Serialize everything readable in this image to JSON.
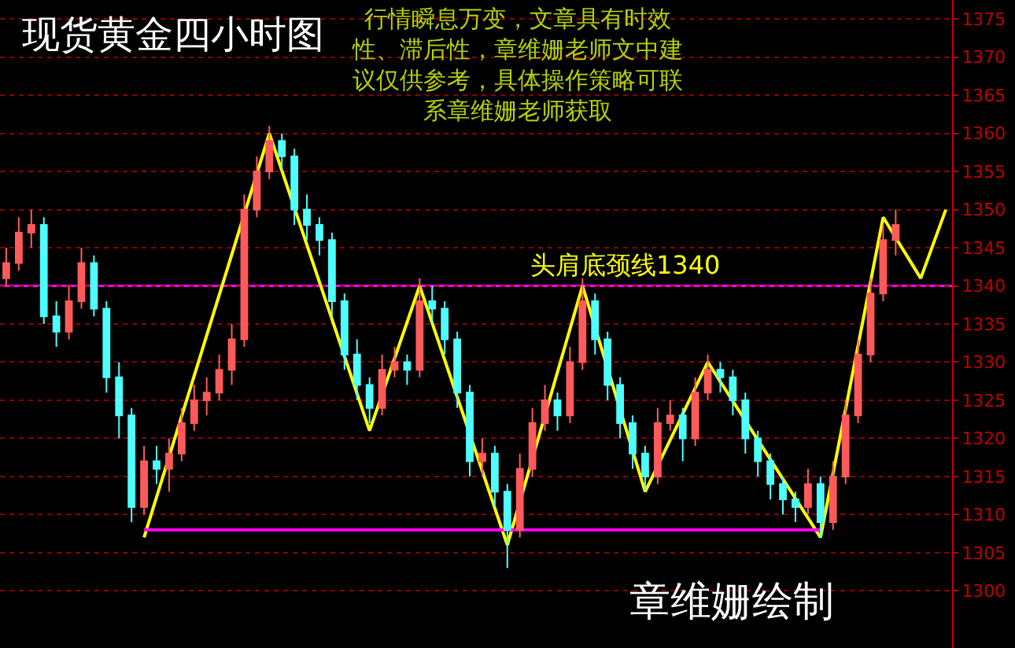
{
  "chart_data": {
    "type": "candlestick",
    "title": "现货黄金四小时图",
    "categories": [
      null,
      null,
      null,
      null,
      null,
      null,
      null,
      null,
      null,
      null,
      null,
      null,
      null,
      null,
      null,
      null,
      null,
      null,
      null,
      null,
      null,
      null,
      null,
      null,
      null,
      null,
      null,
      null,
      null,
      null,
      null,
      null,
      null,
      null,
      null,
      null,
      null,
      null,
      null,
      null,
      null,
      null,
      null,
      null,
      null,
      null,
      null,
      null,
      null,
      null,
      null,
      null,
      null,
      null,
      null,
      null,
      null,
      null,
      null,
      null,
      null,
      null,
      null,
      null,
      null,
      null,
      null,
      null,
      null,
      null,
      null,
      null,
      null,
      null,
      null,
      null
    ],
    "ohlc": [
      [
        1341,
        1345,
        1340,
        1343
      ],
      [
        1343,
        1349,
        1342,
        1347
      ],
      [
        1347,
        1350,
        1345,
        1348
      ],
      [
        1348,
        1349,
        1335,
        1336
      ],
      [
        1336,
        1338,
        1332,
        1334
      ],
      [
        1334,
        1340,
        1333,
        1338
      ],
      [
        1338,
        1345,
        1337,
        1343
      ],
      [
        1343,
        1344,
        1336,
        1337
      ],
      [
        1337,
        1338,
        1326,
        1328
      ],
      [
        1328,
        1330,
        1320,
        1323
      ],
      [
        1323,
        1324,
        1309,
        1311
      ],
      [
        1311,
        1319,
        1310,
        1317
      ],
      [
        1317,
        1319,
        1314,
        1316
      ],
      [
        1316,
        1320,
        1313,
        1318
      ],
      [
        1318,
        1324,
        1317,
        1322
      ],
      [
        1322,
        1327,
        1321,
        1325
      ],
      [
        1325,
        1328,
        1323,
        1326
      ],
      [
        1326,
        1331,
        1325,
        1329
      ],
      [
        1329,
        1335,
        1327,
        1333
      ],
      [
        1333,
        1352,
        1332,
        1350
      ],
      [
        1350,
        1357,
        1349,
        1355
      ],
      [
        1355,
        1361,
        1354,
        1359
      ],
      [
        1359,
        1360,
        1355,
        1357
      ],
      [
        1357,
        1358,
        1348,
        1350
      ],
      [
        1350,
        1352,
        1346,
        1348
      ],
      [
        1348,
        1349,
        1344,
        1346
      ],
      [
        1346,
        1347,
        1336,
        1338
      ],
      [
        1338,
        1339,
        1329,
        1331
      ],
      [
        1331,
        1333,
        1325,
        1327
      ],
      [
        1327,
        1328,
        1322,
        1324
      ],
      [
        1324,
        1331,
        1323,
        1329
      ],
      [
        1329,
        1332,
        1328,
        1330
      ],
      [
        1330,
        1331,
        1327,
        1329
      ],
      [
        1329,
        1341,
        1328,
        1338
      ],
      [
        1338,
        1340,
        1335,
        1337
      ],
      [
        1337,
        1338,
        1331,
        1333
      ],
      [
        1333,
        1334,
        1324,
        1326
      ],
      [
        1326,
        1327,
        1315,
        1317
      ],
      [
        1317,
        1320,
        1315,
        1318
      ],
      [
        1318,
        1319,
        1311,
        1313
      ],
      [
        1313,
        1314,
        1303,
        1308
      ],
      [
        1308,
        1318,
        1307,
        1316
      ],
      [
        1316,
        1324,
        1315,
        1322
      ],
      [
        1322,
        1327,
        1321,
        1325
      ],
      [
        1325,
        1326,
        1321,
        1323
      ],
      [
        1323,
        1332,
        1322,
        1330
      ],
      [
        1330,
        1341,
        1329,
        1338
      ],
      [
        1338,
        1339,
        1331,
        1333
      ],
      [
        1333,
        1334,
        1325,
        1327
      ],
      [
        1327,
        1328,
        1320,
        1322
      ],
      [
        1322,
        1323,
        1316,
        1318
      ],
      [
        1318,
        1319,
        1313,
        1315
      ],
      [
        1315,
        1324,
        1314,
        1322
      ],
      [
        1322,
        1325,
        1321,
        1323
      ],
      [
        1323,
        1324,
        1317,
        1320
      ],
      [
        1320,
        1328,
        1319,
        1326
      ],
      [
        1326,
        1331,
        1325,
        1329
      ],
      [
        1329,
        1330,
        1326,
        1328
      ],
      [
        1328,
        1329,
        1323,
        1325
      ],
      [
        1325,
        1326,
        1318,
        1320
      ],
      [
        1320,
        1321,
        1315,
        1317
      ],
      [
        1317,
        1318,
        1312,
        1314
      ],
      [
        1314,
        1315,
        1310,
        1312
      ],
      [
        1312,
        1313,
        1309,
        1311
      ],
      [
        1311,
        1316,
        1310,
        1314
      ],
      [
        1314,
        1315,
        1307,
        1309
      ],
      [
        1309,
        1317,
        1308,
        1315
      ],
      [
        1315,
        1325,
        1314,
        1323
      ],
      [
        1323,
        1333,
        1322,
        1331
      ],
      [
        1331,
        1341,
        1330,
        1339
      ],
      [
        1339,
        1348,
        1338,
        1346
      ],
      [
        1346,
        1350,
        1344,
        1348
      ],
      null,
      null,
      null,
      null
    ],
    "colors": [
      "#ff5a5a",
      "#ff5a5a",
      "#ff5a5a",
      "#4dffff",
      "#4dffff",
      "#ff5a5a",
      "#ff5a5a",
      "#4dffff",
      "#4dffff",
      "#4dffff",
      "#4dffff",
      "#ff5a5a",
      "#4dffff",
      "#ff5a5a",
      "#ff5a5a",
      "#ff5a5a",
      "#ff5a5a",
      "#ff5a5a",
      "#ff5a5a",
      "#ff5a5a",
      "#ff5a5a",
      "#ff5a5a",
      "#4dffff",
      "#4dffff",
      "#4dffff",
      "#4dffff",
      "#4dffff",
      "#4dffff",
      "#4dffff",
      "#4dffff",
      "#ff5a5a",
      "#ff5a5a",
      "#4dffff",
      "#ff5a5a",
      "#4dffff",
      "#4dffff",
      "#4dffff",
      "#4dffff",
      "#ff5a5a",
      "#4dffff",
      "#4dffff",
      "#ff5a5a",
      "#ff5a5a",
      "#ff5a5a",
      "#4dffff",
      "#ff5a5a",
      "#ff5a5a",
      "#4dffff",
      "#4dffff",
      "#4dffff",
      "#4dffff",
      "#4dffff",
      "#ff5a5a",
      "#ff5a5a",
      "#4dffff",
      "#ff5a5a",
      "#ff5a5a",
      "#4dffff",
      "#4dffff",
      "#4dffff",
      "#4dffff",
      "#4dffff",
      "#4dffff",
      "#4dffff",
      "#ff5a5a",
      "#4dffff",
      "#ff5a5a",
      "#ff5a5a",
      "#ff5a5a",
      "#ff5a5a",
      "#ff5a5a",
      "#ff5a5a",
      null,
      null,
      null,
      null
    ],
    "series": [
      {
        "type": "line",
        "values": [
          null,
          null,
          null,
          null,
          null,
          null,
          null,
          null,
          null,
          null,
          null,
          1307,
          null,
          null,
          null,
          null,
          null,
          null,
          null,
          null,
          null,
          1360,
          null,
          null,
          null,
          null,
          null,
          null,
          null,
          1321,
          null,
          null,
          null,
          1340,
          null,
          null,
          null,
          null,
          null,
          null,
          1306,
          null,
          null,
          null,
          null,
          null,
          1340,
          null,
          null,
          null,
          null,
          1313,
          null,
          null,
          null,
          null,
          1330,
          null,
          null,
          null,
          null,
          null,
          null,
          null,
          null,
          1307,
          null,
          null,
          null,
          null,
          1349,
          null,
          null,
          1341,
          null,
          1350
        ],
        "color": "#ffff00"
      },
      {
        "type": "line",
        "values": [
          null,
          null,
          null,
          null,
          null,
          null,
          null,
          null,
          null,
          null,
          null,
          1308,
          null,
          null,
          null,
          null,
          null,
          null,
          null,
          null,
          null,
          null,
          null,
          null,
          null,
          null,
          null,
          null,
          null,
          null,
          null,
          null,
          null,
          null,
          null,
          null,
          null,
          null,
          null,
          null,
          null,
          null,
          null,
          null,
          null,
          null,
          null,
          null,
          null,
          null,
          null,
          null,
          null,
          null,
          null,
          null,
          null,
          null,
          null,
          null,
          null,
          null,
          null,
          null,
          null,
          1308,
          null,
          null,
          null,
          null,
          null,
          null,
          null,
          null,
          null,
          null
        ],
        "color": "#ff00ff"
      }
    ],
    "ylim": [
      1292.5,
      1377.5
    ],
    "yticks": [
      1300,
      1305,
      1310,
      1315,
      1320,
      1325,
      1330,
      1335,
      1340,
      1345,
      1350,
      1355,
      1360,
      1365,
      1370,
      1375
    ],
    "ref_lines": [
      {
        "axis": "y",
        "value": 1340,
        "label": "头肩底颈线1340",
        "color": "#ff00ff"
      }
    ],
    "annotations": [
      "行情瞬息万变，文章具有时效性、滞后性，章维姗老师文中建议仅供参考，具体操作策略可联系章维姗老师获取",
      "章维姗绘制"
    ],
    "grid": "y",
    "marker": "none",
    "line_style": "solid"
  }
}
